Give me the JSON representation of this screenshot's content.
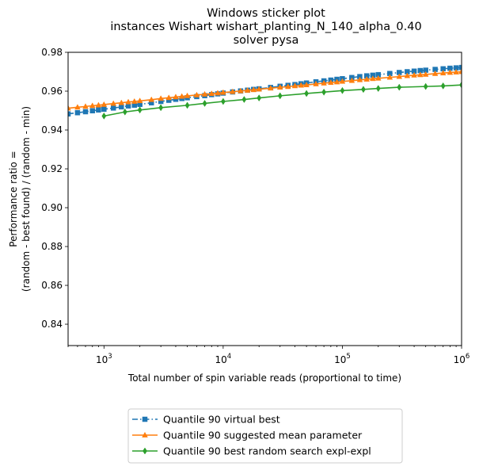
{
  "chart_data": {
    "type": "line",
    "title": [
      "Windows sticker plot",
      "instances Wishart wishart_planting_N_140_alpha_0.40",
      "solver pysa"
    ],
    "xlabel": "Total number of spin variable reads (proportional to time)",
    "ylabel": [
      "Performance ratio =",
      "(random - best found) / (random - min)"
    ],
    "xscale": "log",
    "xlim": [
      500,
      1000000
    ],
    "ylim": [
      0.829,
      0.98
    ],
    "x_ticks": [
      {
        "value": 1000,
        "base": "10",
        "exp": "3"
      },
      {
        "value": 10000,
        "base": "10",
        "exp": "4"
      },
      {
        "value": 100000,
        "base": "10",
        "exp": "5"
      },
      {
        "value": 1000000,
        "base": "10",
        "exp": "6"
      }
    ],
    "y_ticks": [
      "0.84",
      "0.86",
      "0.88",
      "0.90",
      "0.92",
      "0.94",
      "0.96",
      "0.98"
    ],
    "grid": false,
    "legend_placement": "below",
    "series": [
      {
        "name": "Quantile 90 virtual best",
        "color": "#1f77b4",
        "marker": "square",
        "dash": "dashdot",
        "x": [
          500,
          600,
          700,
          800,
          900,
          1000,
          1200,
          1400,
          1600,
          1800,
          2000,
          2500,
          3000,
          3500,
          4000,
          4500,
          5000,
          6000,
          7000,
          8000,
          9000,
          10000,
          12000,
          14000,
          16000,
          18000,
          20000,
          25000,
          30000,
          35000,
          40000,
          45000,
          50000,
          60000,
          70000,
          80000,
          90000,
          100000,
          120000,
          140000,
          160000,
          180000,
          200000,
          250000,
          300000,
          350000,
          400000,
          450000,
          500000,
          600000,
          700000,
          800000,
          900000,
          1000000
        ],
        "y": [
          0.9483,
          0.9489,
          0.9494,
          0.9499,
          0.9503,
          0.9507,
          0.9513,
          0.9519,
          0.9524,
          0.9528,
          0.9532,
          0.954,
          0.9547,
          0.9553,
          0.9558,
          0.9562,
          0.9566,
          0.9572,
          0.9577,
          0.9582,
          0.9586,
          0.959,
          0.9596,
          0.9601,
          0.9605,
          0.9609,
          0.9612,
          0.9619,
          0.9625,
          0.963,
          0.9634,
          0.9638,
          0.9642,
          0.9648,
          0.9653,
          0.9657,
          0.9661,
          0.9664,
          0.967,
          0.9675,
          0.9679,
          0.9682,
          0.9685,
          0.9691,
          0.9696,
          0.97,
          0.9703,
          0.9706,
          0.9708,
          0.9712,
          0.9715,
          0.9718,
          0.972,
          0.9722
        ]
      },
      {
        "name": "Quantile 90 suggested mean parameter",
        "color": "#ff7f0e",
        "marker": "triangle",
        "dash": "solid",
        "x": [
          500,
          600,
          700,
          800,
          900,
          1000,
          1200,
          1400,
          1600,
          1800,
          2000,
          2500,
          3000,
          3500,
          4000,
          4500,
          5000,
          6000,
          7000,
          8000,
          9000,
          10000,
          12000,
          14000,
          16000,
          18000,
          20000,
          25000,
          30000,
          35000,
          40000,
          45000,
          50000,
          60000,
          70000,
          80000,
          90000,
          100000,
          120000,
          140000,
          160000,
          180000,
          200000,
          250000,
          300000,
          350000,
          400000,
          450000,
          500000,
          600000,
          700000,
          800000,
          900000,
          1000000
        ],
        "y": [
          0.9512,
          0.9517,
          0.9521,
          0.9525,
          0.9528,
          0.9531,
          0.9536,
          0.954,
          0.9544,
          0.9547,
          0.955,
          0.9556,
          0.9562,
          0.9566,
          0.957,
          0.9573,
          0.9576,
          0.958,
          0.9584,
          0.9587,
          0.959,
          0.9593,
          0.9597,
          0.9601,
          0.9604,
          0.9607,
          0.961,
          0.9615,
          0.962,
          0.9623,
          0.9627,
          0.963,
          0.9632,
          0.9637,
          0.9641,
          0.9644,
          0.9647,
          0.965,
          0.9654,
          0.9658,
          0.9661,
          0.9664,
          0.9666,
          0.9671,
          0.9675,
          0.9679,
          0.9682,
          0.9684,
          0.9686,
          0.969,
          0.9693,
          0.9696,
          0.9698,
          0.97
        ]
      },
      {
        "name": "Quantile 90  best random search expl-expl",
        "color": "#2ca02c",
        "marker": "diamond",
        "dash": "solid",
        "x": [
          1000,
          1500,
          2000,
          3000,
          5000,
          7000,
          10000,
          15000,
          20000,
          30000,
          50000,
          70000,
          100000,
          150000,
          200000,
          300000,
          500000,
          700000,
          1000000
        ],
        "y": [
          0.9472,
          0.9493,
          0.9503,
          0.9515,
          0.9527,
          0.9537,
          0.9547,
          0.9557,
          0.9565,
          0.9576,
          0.9588,
          0.9595,
          0.9603,
          0.9609,
          0.9614,
          0.962,
          0.9624,
          0.9627,
          0.9632
        ]
      }
    ]
  }
}
